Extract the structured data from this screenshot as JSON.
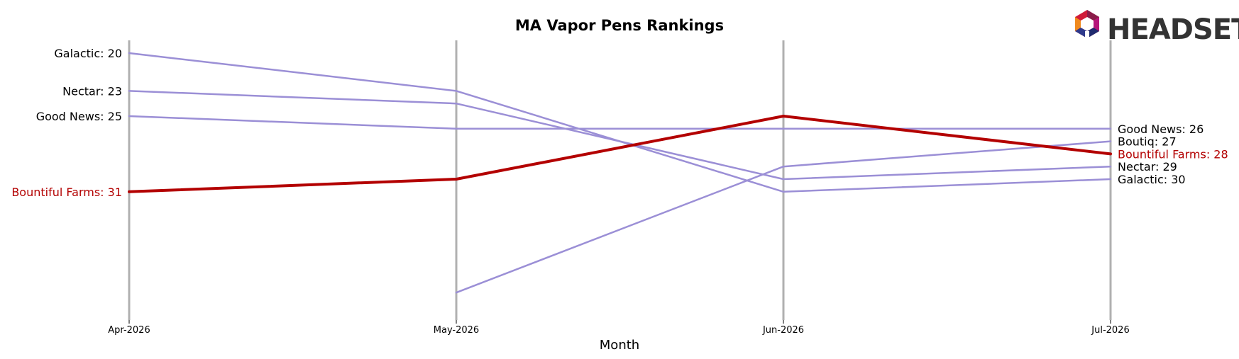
{
  "chart_data": {
    "type": "line",
    "title": "MA Vapor Pens Rankings",
    "xlabel": "Month",
    "ylabel": "",
    "categories": [
      "Apr-2026",
      "May-2026",
      "Jun-2026",
      "Jul-2026"
    ],
    "y_inverted": true,
    "ylim": [
      19,
      41
    ],
    "grid": false,
    "highlight_series": "Bountiful Farms",
    "colors": {
      "highlight": "#b30000",
      "other": "#9b8fd6",
      "axis_line": "#b0b0b0"
    },
    "series": [
      {
        "name": "Galactic",
        "values": [
          20,
          23,
          31,
          30
        ]
      },
      {
        "name": "Nectar",
        "values": [
          23,
          24,
          30,
          29
        ]
      },
      {
        "name": "Good News",
        "values": [
          25,
          26,
          26,
          26
        ]
      },
      {
        "name": "Boutiq",
        "values": [
          null,
          39,
          29,
          27
        ]
      },
      {
        "name": "Bountiful Farms",
        "values": [
          31,
          30,
          25,
          28
        ]
      }
    ],
    "start_labels": [
      {
        "series": "Galactic",
        "text": "Galactic: 20"
      },
      {
        "series": "Nectar",
        "text": "Nectar: 23"
      },
      {
        "series": "Good News",
        "text": "Good News: 25"
      },
      {
        "series": "Bountiful Farms",
        "text": "Bountiful Farms: 31"
      }
    ],
    "end_labels": [
      {
        "series": "Good News",
        "text": "Good News: 26"
      },
      {
        "series": "Boutiq",
        "text": "Boutiq: 27"
      },
      {
        "series": "Bountiful Farms",
        "text": "Bountiful Farms: 28"
      },
      {
        "series": "Nectar",
        "text": "Nectar: 29"
      },
      {
        "series": "Galactic",
        "text": "Galactic: 30"
      }
    ]
  },
  "logo": {
    "text": "HEADSET",
    "icon": "headset-hexagon-icon"
  }
}
